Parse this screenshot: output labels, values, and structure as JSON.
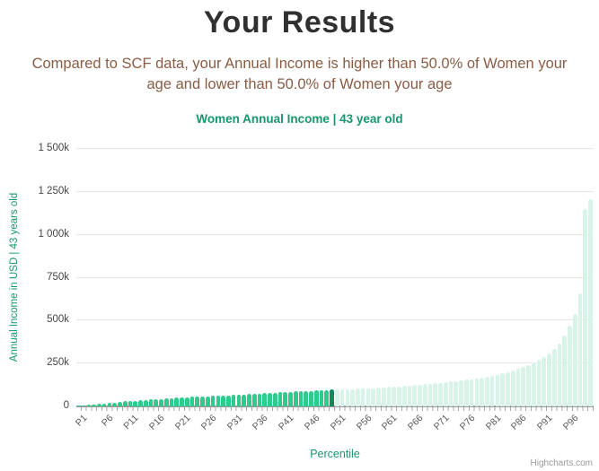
{
  "header": {
    "title": "Your Results",
    "subtitle_line1": "Compared to SCF data, your Annual Income is higher than 50.0% of Women your",
    "subtitle_line2": "age and lower than 50.0% of Women your age"
  },
  "credits": "Highcharts.com",
  "chart_data": {
    "type": "bar",
    "title": "Women Annual Income | 43 year old",
    "xlabel": "Percentile",
    "ylabel": "Annual Income in USD | 43 years old",
    "ylim": [
      0,
      1500000
    ],
    "grid": true,
    "legend": false,
    "ytick_labels": [
      "0",
      "250k",
      "500k",
      "750k",
      "1 000k",
      "1 250k",
      "1 500k"
    ],
    "xtick_labels": [
      "P1",
      "P6",
      "P11",
      "P16",
      "P21",
      "P26",
      "P31",
      "P36",
      "P41",
      "P46",
      "P51",
      "P56",
      "P61",
      "P66",
      "P71",
      "P76",
      "P81",
      "P86",
      "P91",
      "P96"
    ],
    "xtick_every": 5,
    "categories": [
      "P1",
      "P2",
      "P3",
      "P4",
      "P5",
      "P6",
      "P7",
      "P8",
      "P9",
      "P10",
      "P11",
      "P12",
      "P13",
      "P14",
      "P15",
      "P16",
      "P17",
      "P18",
      "P19",
      "P20",
      "P21",
      "P22",
      "P23",
      "P24",
      "P25",
      "P26",
      "P27",
      "P28",
      "P29",
      "P30",
      "P31",
      "P32",
      "P33",
      "P34",
      "P35",
      "P36",
      "P37",
      "P38",
      "P39",
      "P40",
      "P41",
      "P42",
      "P43",
      "P44",
      "P45",
      "P46",
      "P47",
      "P48",
      "P49",
      "P50",
      "P51",
      "P52",
      "P53",
      "P54",
      "P55",
      "P56",
      "P57",
      "P58",
      "P59",
      "P60",
      "P61",
      "P62",
      "P63",
      "P64",
      "P65",
      "P66",
      "P67",
      "P68",
      "P69",
      "P70",
      "P71",
      "P72",
      "P73",
      "P74",
      "P75",
      "P76",
      "P77",
      "P78",
      "P79",
      "P80",
      "P81",
      "P82",
      "P83",
      "P84",
      "P85",
      "P86",
      "P87",
      "P88",
      "P89",
      "P90",
      "P91",
      "P92",
      "P93",
      "P94",
      "P95",
      "P96",
      "P97",
      "P98",
      "P99",
      "P100"
    ],
    "values": [
      2000,
      5000,
      8000,
      11000,
      14000,
      17000,
      20000,
      23000,
      26000,
      29000,
      32000,
      34000,
      36000,
      38000,
      40000,
      42000,
      44000,
      46000,
      48000,
      50000,
      52000,
      53000,
      55000,
      56000,
      58000,
      59000,
      61000,
      62000,
      64000,
      65000,
      67000,
      68000,
      70000,
      71000,
      73000,
      75000,
      76000,
      78000,
      80000,
      82000,
      84000,
      85000,
      87000,
      88000,
      90000,
      91000,
      93000,
      94000,
      96000,
      98000,
      97000,
      98000,
      99000,
      100000,
      102000,
      103000,
      105000,
      107000,
      109000,
      111000,
      113000,
      115000,
      117000,
      119000,
      121000,
      124000,
      126000,
      129000,
      132000,
      135000,
      138000,
      141000,
      144000,
      147000,
      151000,
      155000,
      159000,
      163000,
      168000,
      173000,
      179000,
      185000,
      192000,
      200000,
      209000,
      219000,
      230000,
      242000,
      255000,
      270000,
      287000,
      307000,
      332000,
      365000,
      412000,
      470000,
      540000,
      660000,
      1150000,
      1210000
    ],
    "highlight_index": 49,
    "colors": {
      "below_user": "#2fcb8d",
      "user": "#0f8a5b",
      "above_user": "#d8f3e7",
      "gridline": "#e6e6e6",
      "axis_line": "#9a9a9a",
      "title_green": "#16976c",
      "subtitle_brown": "#8a5c44"
    }
  }
}
